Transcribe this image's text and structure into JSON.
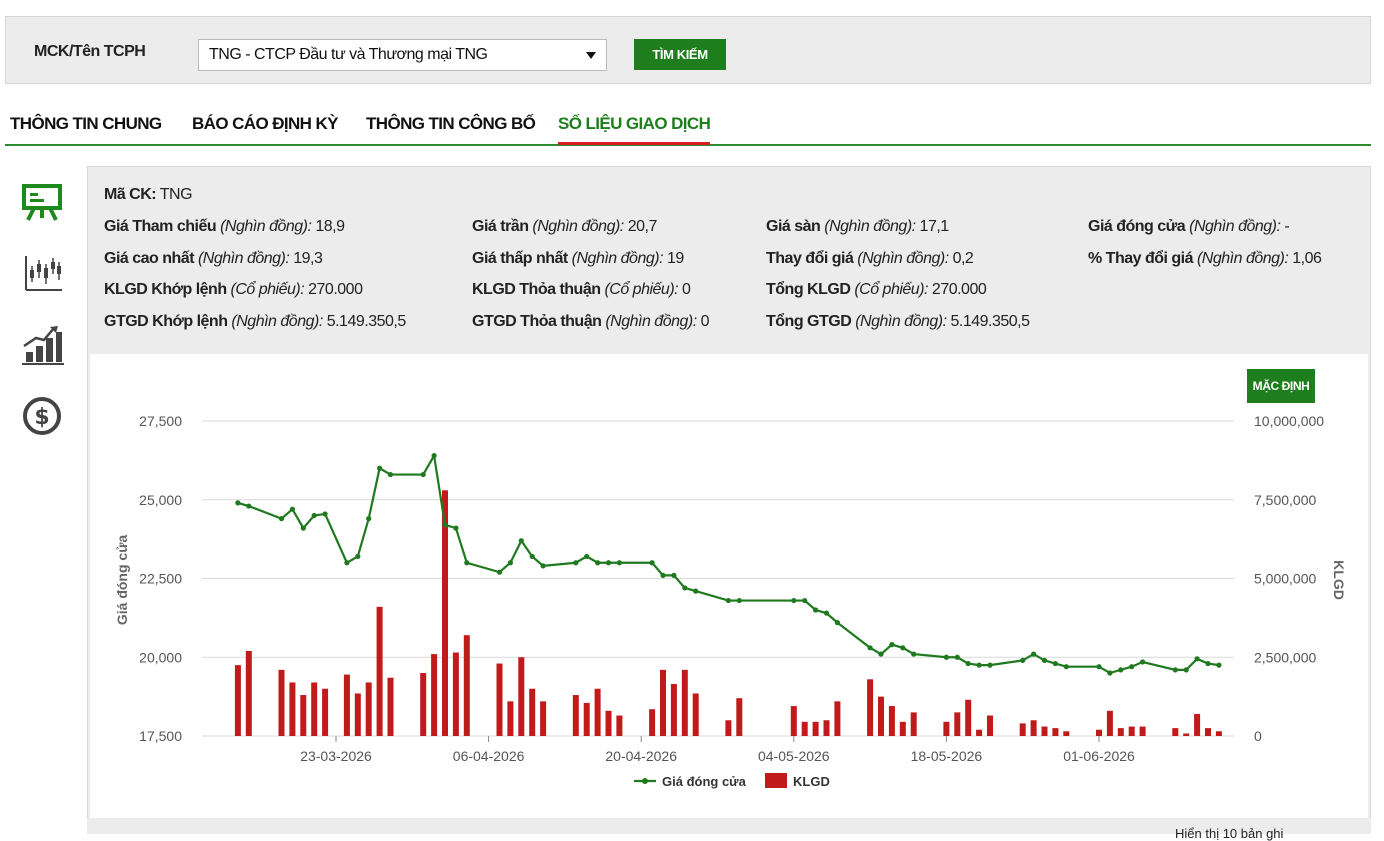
{
  "search": {
    "label": "MCK/Tên TCPH",
    "selected": "TNG - CTCP Đầu tư và Thương mại TNG",
    "button": "TÌM KIẾM"
  },
  "tabs": [
    {
      "label": "THÔNG TIN CHUNG",
      "active": false
    },
    {
      "label": "BÁO CÁO ĐỊNH KỲ",
      "active": false
    },
    {
      "label": "THÔNG TIN CÔNG BỐ",
      "active": false
    },
    {
      "label": "SỐ LIỆU GIAO DỊCH",
      "active": true
    }
  ],
  "side_icons": [
    "presentation-board-icon",
    "candlestick-chart-icon",
    "growth-bar-chart-icon",
    "dollar-coin-icon"
  ],
  "info": {
    "code_label": "Mã CK:",
    "code_value": "TNG",
    "rows": [
      [
        {
          "label": "Giá Tham chiếu",
          "unit": "(Nghìn đồng):",
          "value": "18,9"
        },
        {
          "label": "Giá trần",
          "unit": "(Nghìn đồng):",
          "value": "20,7"
        },
        {
          "label": "Giá sàn",
          "unit": "(Nghìn đồng):",
          "value": "17,1"
        },
        {
          "label": "Giá đóng cửa",
          "unit": "(Nghìn đồng):",
          "value": "-"
        }
      ],
      [
        {
          "label": "Giá cao nhất",
          "unit": "(Nghìn đồng):",
          "value": "19,3"
        },
        {
          "label": "Giá thấp nhất",
          "unit": "(Nghìn đồng):",
          "value": "19"
        },
        {
          "label": "Thay đổi giá",
          "unit": "(Nghìn đồng):",
          "value": "0,2"
        },
        {
          "label": "% Thay đổi giá",
          "unit": "(Nghìn đồng):",
          "value": "1,06"
        }
      ],
      [
        {
          "label": "KLGD Khớp lệnh",
          "unit": "(Cổ phiếu):",
          "value": "270.000"
        },
        {
          "label": "KLGD Thỏa thuận",
          "unit": "(Cổ phiếu):",
          "value": "0"
        },
        {
          "label": "Tổng KLGD",
          "unit": "(Cổ phiếu):",
          "value": "270.000"
        }
      ],
      [
        {
          "label": "GTGD Khớp lệnh",
          "unit": "(Nghìn đồng):",
          "value": "5.149.350,5"
        },
        {
          "label": "GTGD Thỏa thuận",
          "unit": "(Nghìn đồng):",
          "value": "0"
        },
        {
          "label": "Tổng GTGD",
          "unit": "(Nghìn đồng):",
          "value": "5.149.350,5"
        }
      ]
    ]
  },
  "chart_controls": {
    "default_button": "MẶC ĐỊNH"
  },
  "footer": {
    "text": "Hiển thị 10 bản ghi"
  },
  "colors": {
    "accent": "#1e7e1e",
    "price_line": "#1f7a1f",
    "volume_bar": "#c01a1a",
    "active_tab_underline": "#d62020"
  },
  "chart_data": {
    "type": "line+bar",
    "x_ticks": [
      "23-03-2026",
      "06-04-2026",
      "20-04-2026",
      "04-05-2026",
      "18-05-2026",
      "01-06-2026"
    ],
    "ylabel_left": "Giá đóng cửa",
    "ylabel_right": "KLGD",
    "y_left_ticks": [
      "17,500",
      "20,000",
      "22,500",
      "25,000",
      "27,500"
    ],
    "y_left_range": [
      17500,
      27500
    ],
    "y_right_ticks": [
      "0",
      "2,500,000",
      "5,000,000",
      "7,500,000",
      "10,000,000"
    ],
    "y_right_range": [
      0,
      10000000
    ],
    "legend": [
      "Giá đóng cửa",
      "KLGD"
    ],
    "legend_position": "bottom-center",
    "grid": true,
    "price_series": {
      "name": "Giá đóng cửa",
      "points": [
        [
          -9,
          24900
        ],
        [
          -8,
          24800
        ],
        [
          -5,
          24400
        ],
        [
          -4,
          24700
        ],
        [
          -3,
          24100
        ],
        [
          -2,
          24500
        ],
        [
          -1,
          24550
        ],
        [
          1,
          23000
        ],
        [
          2,
          23200
        ],
        [
          3,
          24400
        ],
        [
          4,
          26000
        ],
        [
          5,
          25800
        ],
        [
          8,
          25800
        ],
        [
          9,
          26400
        ],
        [
          10,
          24200
        ],
        [
          11,
          24100
        ],
        [
          12,
          23000
        ],
        [
          15,
          22700
        ],
        [
          16,
          23000
        ],
        [
          17,
          23700
        ],
        [
          18,
          23200
        ],
        [
          19,
          22900
        ],
        [
          22,
          23000
        ],
        [
          23,
          23200
        ],
        [
          24,
          23000
        ],
        [
          25,
          23000
        ],
        [
          26,
          23000
        ],
        [
          29,
          23000
        ],
        [
          30,
          22600
        ],
        [
          31,
          22600
        ],
        [
          32,
          22200
        ],
        [
          33,
          22100
        ],
        [
          36,
          21800
        ],
        [
          37,
          21800
        ],
        [
          42,
          21800
        ],
        [
          43,
          21800
        ],
        [
          44,
          21500
        ],
        [
          45,
          21400
        ],
        [
          46,
          21100
        ],
        [
          49,
          20300
        ],
        [
          50,
          20100
        ],
        [
          51,
          20400
        ],
        [
          52,
          20300
        ],
        [
          53,
          20100
        ],
        [
          56,
          20000
        ],
        [
          57,
          20000
        ],
        [
          58,
          19800
        ],
        [
          59,
          19750
        ],
        [
          60,
          19750
        ],
        [
          63,
          19900
        ],
        [
          64,
          20100
        ],
        [
          65,
          19900
        ],
        [
          66,
          19800
        ],
        [
          67,
          19700
        ],
        [
          70,
          19700
        ],
        [
          71,
          19500
        ],
        [
          72,
          19600
        ],
        [
          73,
          19700
        ],
        [
          74,
          19850
        ],
        [
          77,
          19600
        ],
        [
          78,
          19600
        ],
        [
          79,
          19950
        ],
        [
          80,
          19800
        ],
        [
          81,
          19750
        ]
      ]
    },
    "volume_series": {
      "name": "KLGD",
      "points": [
        [
          -9,
          2250000
        ],
        [
          -8,
          2700000
        ],
        [
          -5,
          2100000
        ],
        [
          -4,
          1700000
        ],
        [
          -3,
          1300000
        ],
        [
          -2,
          1700000
        ],
        [
          -1,
          1500000
        ],
        [
          1,
          1950000
        ],
        [
          2,
          1350000
        ],
        [
          3,
          1700000
        ],
        [
          4,
          4100000
        ],
        [
          5,
          1850000
        ],
        [
          8,
          2000000
        ],
        [
          9,
          2600000
        ],
        [
          10,
          7800000
        ],
        [
          11,
          2650000
        ],
        [
          12,
          3200000
        ],
        [
          15,
          2300000
        ],
        [
          16,
          1100000
        ],
        [
          17,
          2500000
        ],
        [
          18,
          1500000
        ],
        [
          19,
          1100000
        ],
        [
          22,
          1300000
        ],
        [
          23,
          1050000
        ],
        [
          24,
          1500000
        ],
        [
          25,
          800000
        ],
        [
          26,
          650000
        ],
        [
          29,
          850000
        ],
        [
          30,
          2100000
        ],
        [
          31,
          1650000
        ],
        [
          32,
          2100000
        ],
        [
          33,
          1350000
        ],
        [
          36,
          500000
        ],
        [
          37,
          1200000
        ],
        [
          42,
          950000
        ],
        [
          43,
          450000
        ],
        [
          44,
          450000
        ],
        [
          45,
          500000
        ],
        [
          46,
          1100000
        ],
        [
          49,
          1800000
        ],
        [
          50,
          1250000
        ],
        [
          51,
          950000
        ],
        [
          52,
          450000
        ],
        [
          53,
          750000
        ],
        [
          56,
          450000
        ],
        [
          57,
          750000
        ],
        [
          58,
          1150000
        ],
        [
          59,
          200000
        ],
        [
          60,
          650000
        ],
        [
          63,
          400000
        ],
        [
          64,
          500000
        ],
        [
          65,
          300000
        ],
        [
          66,
          250000
        ],
        [
          67,
          150000
        ],
        [
          70,
          200000
        ],
        [
          71,
          800000
        ],
        [
          72,
          250000
        ],
        [
          73,
          300000
        ],
        [
          74,
          300000
        ],
        [
          77,
          250000
        ],
        [
          78,
          80000
        ],
        [
          79,
          700000
        ],
        [
          80,
          250000
        ],
        [
          81,
          150000
        ]
      ]
    }
  }
}
